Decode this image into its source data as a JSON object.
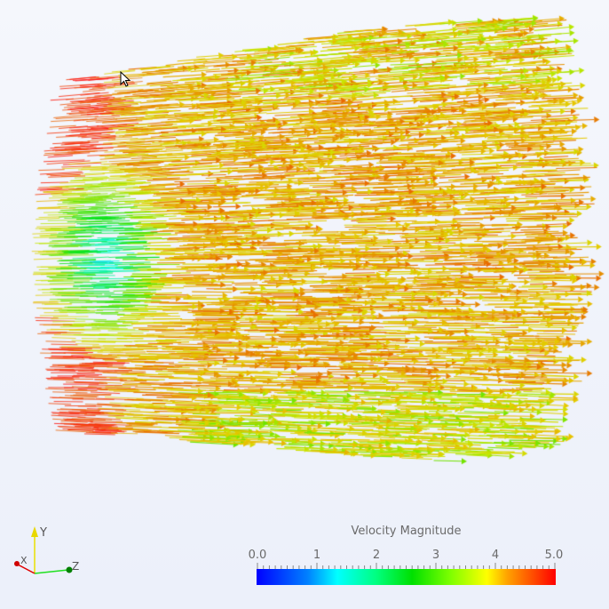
{
  "viewport": {
    "background": "#eef2fb"
  },
  "colorbar": {
    "title": "Velocity Magnitude",
    "labels": [
      "0.0",
      "1",
      "2",
      "3",
      "4",
      "5.0"
    ],
    "range": [
      0.0,
      5.0
    ],
    "colormap": [
      "#0000ff",
      "#00ffff",
      "#00e000",
      "#ffff00",
      "#ff0000"
    ]
  },
  "orientation_axes": {
    "x": "X",
    "y": "Y",
    "z": "Z",
    "x_color": "#e00000",
    "y_color": "#e8e000",
    "z_color": "#00a000"
  }
}
